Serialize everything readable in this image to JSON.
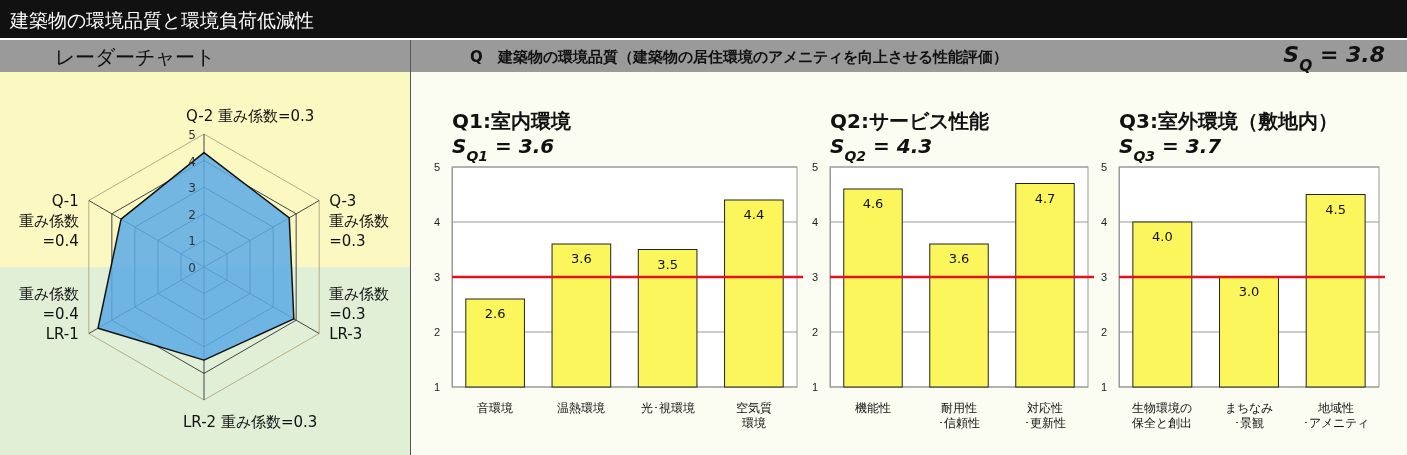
{
  "chart_data": [
    {
      "type": "radar",
      "title": "レーダーチャート",
      "annotations": [
        "建築物の環境品質と環境負荷低減性"
      ],
      "categories": [
        "Q-2  重み係数=0.3",
        "Q-3\n重み係数\n=0.3",
        "重み係数\n=0.3\nLR-3",
        "LR-2  重み係数=0.3",
        "重み係数\n=0.4\nLR-1",
        "Q-1\n重み係数\n=0.4"
      ],
      "series": [
        {
          "color": "#5aaae6",
          "values": [
            4.3,
            3.7,
            3.9,
            3.5,
            4.6,
            3.6
          ]
        }
      ],
      "ylim": [
        0,
        5
      ],
      "yticks": [
        0,
        1,
        2,
        3,
        4,
        5
      ]
    },
    {
      "type": "bar",
      "title": "Q1:室内環境",
      "subtitle": "S$_{Q1}$ = 3.6",
      "annotations": [
        "Q　建築物の環境品質（建築物の居住環境のアメニティを向上させる性能評価）",
        "S$_{Q}$ = 3.8"
      ],
      "categories": [
        "音環境",
        "温熱環境",
        "光･視環境",
        "空気質環境"
      ],
      "values": [
        2.6,
        3.6,
        3.5,
        4.4
      ],
      "color": "#fbf65c",
      "ylim": [
        1,
        5
      ],
      "yticks": [
        1,
        2,
        3,
        4,
        5
      ],
      "grid": "y",
      "data_labels": true,
      "ref_lines": [
        {
          "axis": "y",
          "value": 3,
          "color": "#e3121b"
        }
      ]
    },
    {
      "type": "bar",
      "title": "Q2:サービス性能",
      "subtitle": "S$_{Q2}$ = 4.3",
      "categories": [
        "機能性",
        "耐用性･信頼性",
        "対応性･更新性"
      ],
      "values": [
        4.6,
        3.6,
        4.7
      ],
      "color": "#fbf65c",
      "ylim": [
        1,
        5
      ],
      "yticks": [
        1,
        2,
        3,
        4,
        5
      ],
      "grid": "y",
      "data_labels": true,
      "ref_lines": [
        {
          "axis": "y",
          "value": 3,
          "color": "#e3121b"
        }
      ]
    },
    {
      "type": "bar",
      "title": "Q3:室外環境（敷地内）",
      "subtitle": "S$_{Q3}$ = 3.7",
      "categories": [
        "生物環境の保全と創出",
        "まちなみ･景観",
        "地域性･アメニティ"
      ],
      "values": [
        4.0,
        3.0,
        4.5
      ],
      "value_labels": [
        "4.0",
        "3.0",
        "4.5"
      ],
      "color": "#fbf65c",
      "ylim": [
        1,
        5
      ],
      "yticks": [
        1,
        2,
        3,
        4,
        5
      ],
      "grid": "y",
      "ref_lines": [
        {
          "axis": "y",
          "value": 3,
          "color": "#e3121b"
        }
      ]
    }
  ]
}
